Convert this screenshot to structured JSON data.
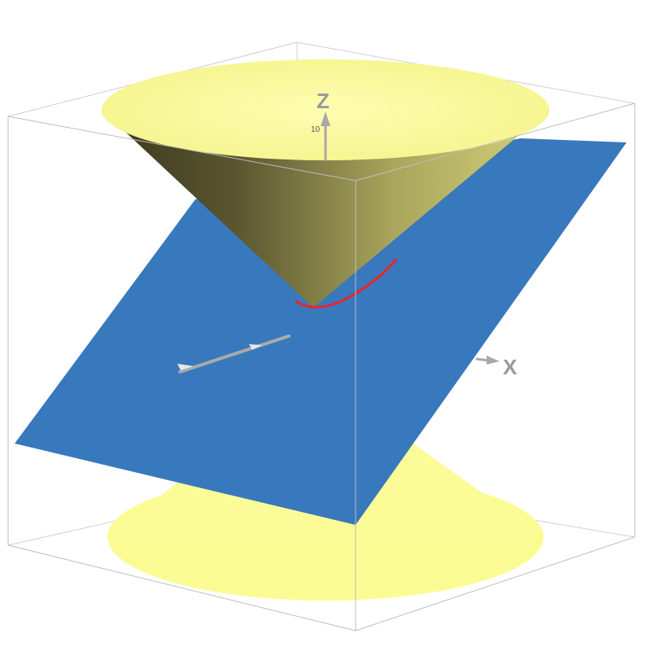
{
  "axes": {
    "x_label": "X",
    "z_label": "Z",
    "z_tick": "10"
  },
  "colors": {
    "cone": "#fbfb94",
    "cone_shadow": "#3f3c1f",
    "plane": "#3878bd",
    "intersection": "#e8262a",
    "box": "#c8c8c8",
    "axis_arrow": "#a8a8a8"
  },
  "surfaces": [
    "double-cone",
    "plane",
    "intersection-curve"
  ]
}
